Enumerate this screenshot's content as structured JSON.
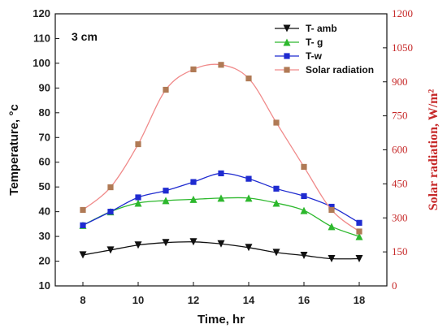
{
  "chart_data": {
    "type": "line",
    "annotation": "3 cm",
    "xlabel": "Time, hr",
    "ylabel_left": "Temperature, °c",
    "ylabel_right": "Solar radiation, W/m²",
    "x": [
      8,
      9,
      10,
      11,
      12,
      13,
      14,
      15,
      16,
      17,
      18
    ],
    "xlim": [
      7,
      19
    ],
    "x_ticks": [
      8,
      10,
      12,
      14,
      16,
      18
    ],
    "ylim_left": [
      10,
      120
    ],
    "y_ticks_left": [
      10,
      20,
      30,
      40,
      50,
      60,
      70,
      80,
      90,
      100,
      110,
      120
    ],
    "ylim_right": [
      0,
      1200
    ],
    "y_ticks_right": [
      0,
      150,
      300,
      450,
      600,
      750,
      900,
      1050,
      1200
    ],
    "legend_position": "top-right",
    "series": [
      {
        "name": "T- amb",
        "axis": "left",
        "color": "#111111",
        "marker": "triangle-down",
        "values": [
          22.5,
          24.5,
          26.5,
          27.5,
          27.8,
          27.0,
          25.5,
          23.5,
          22.3,
          21.0,
          21.0
        ]
      },
      {
        "name": "T- g",
        "axis": "left",
        "color": "#2db82d",
        "marker": "triangle-up",
        "values": [
          34.5,
          40.0,
          43.5,
          44.5,
          45.0,
          45.5,
          45.5,
          43.5,
          40.5,
          34.0,
          30.0
        ]
      },
      {
        "name": "T-w",
        "axis": "left",
        "color": "#1f2bd0",
        "marker": "square",
        "values": [
          34.5,
          40.0,
          45.8,
          48.5,
          52.0,
          55.5,
          53.3,
          49.3,
          46.3,
          42.0,
          35.5
        ]
      },
      {
        "name": "Solar radiation",
        "axis": "right",
        "color": "#f08a8a",
        "marker_color": "#b07a55",
        "marker": "square",
        "values": [
          335,
          435,
          625,
          865,
          955,
          975,
          915,
          720,
          525,
          335,
          240
        ]
      }
    ]
  }
}
